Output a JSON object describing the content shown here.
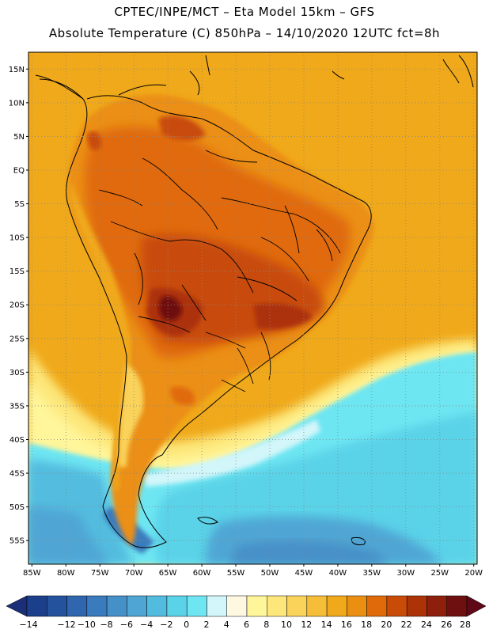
{
  "title": {
    "line1": "CPTEC/INPE/MCT –  Eta Model 15km – GFS",
    "line2": "Absolute Temperature (C) 850hPa – 14/10/2020 12UTC fct=8h"
  },
  "axes": {
    "lat_labels": [
      "15N",
      "10N",
      "5N",
      "EQ",
      "5S",
      "10S",
      "15S",
      "20S",
      "25S",
      "30S",
      "35S",
      "40S",
      "45S",
      "50S",
      "55S"
    ],
    "lon_labels": [
      "85W",
      "80W",
      "75W",
      "70W",
      "65W",
      "60W",
      "55W",
      "50W",
      "45W",
      "40W",
      "35W",
      "30W",
      "25W",
      "20W"
    ],
    "lat_range": [
      17.5,
      -58.5
    ],
    "lon_range": [
      -85.5,
      -19.5
    ],
    "grid": "dotted"
  },
  "colorbar": {
    "labels": [
      "-14",
      "-12",
      "-10",
      "-8",
      "-6",
      "-4",
      "-2",
      "0",
      "2",
      "4",
      "6",
      "8",
      "10",
      "12",
      "14",
      "16",
      "18",
      "20",
      "22",
      "24",
      "26",
      "28"
    ],
    "colors": [
      "#1c3f8c",
      "#25529d",
      "#2f66ae",
      "#3a7bbd",
      "#4690c8",
      "#4fa6d4",
      "#52bcdf",
      "#5ad2e8",
      "#6ee6f2",
      "#d2f6fa",
      "#fff8e0",
      "#fff59a",
      "#fde77a",
      "#fad35a",
      "#f5bd38",
      "#f0a91a",
      "#eb8f12",
      "#e06a0a",
      "#c84c08",
      "#ac3308",
      "#8e1f0c",
      "#6e1010"
    ],
    "under_color": "#1b2f78",
    "over_color": "#5e0818"
  }
}
